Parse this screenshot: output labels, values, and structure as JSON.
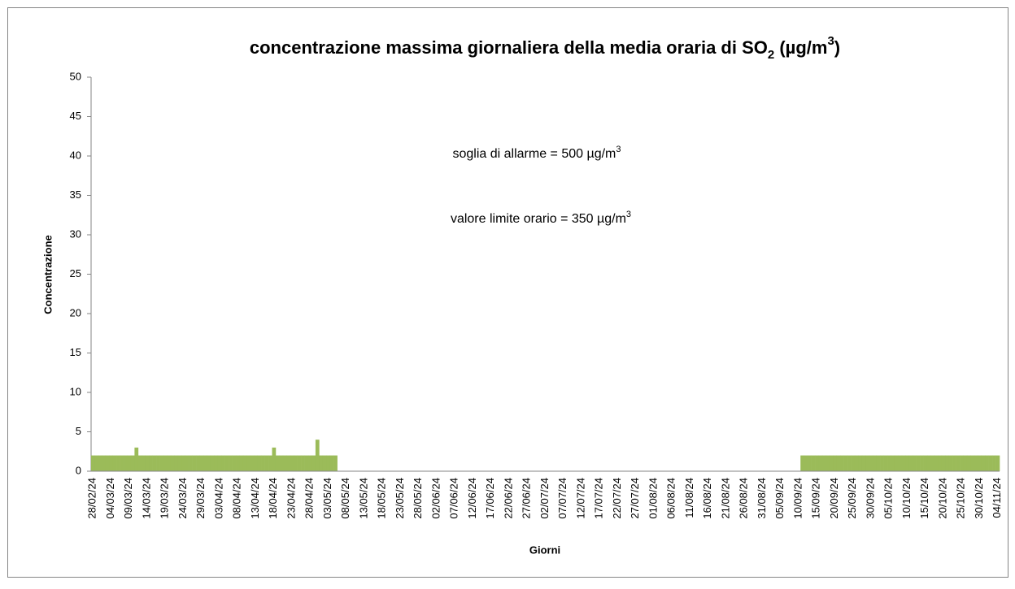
{
  "chart_data": {
    "type": "bar",
    "title": [
      "concentrazione massima  giornaliera della media oraria di SO",
      "2",
      " (µg/m",
      "3",
      ")"
    ],
    "annotations": [
      [
        "soglia di allarme = 500 µg/m",
        "3"
      ],
      [
        "valore limite orario = 350 µg/m",
        "3"
      ]
    ],
    "x_label": "Giorni",
    "y_label": "Concentrazione",
    "color": "#9bbb59",
    "ylim": [
      0,
      50
    ],
    "yticks": [
      0,
      5,
      10,
      15,
      20,
      25,
      30,
      35,
      40,
      45,
      50
    ],
    "grid": false,
    "categories": [
      "28/02/24",
      null,
      null,
      null,
      null,
      "04/03/24",
      null,
      null,
      null,
      null,
      "09/03/24",
      null,
      null,
      null,
      null,
      "14/03/24",
      null,
      null,
      null,
      null,
      "19/03/24",
      null,
      null,
      null,
      null,
      "24/03/24",
      null,
      null,
      null,
      null,
      "29/03/24",
      null,
      null,
      null,
      null,
      "03/04/24",
      null,
      null,
      null,
      null,
      "08/04/24",
      null,
      null,
      null,
      null,
      "13/04/24",
      null,
      null,
      null,
      null,
      "18/04/24",
      null,
      null,
      null,
      null,
      "23/04/24",
      null,
      null,
      null,
      null,
      "28/04/24",
      null,
      null,
      null,
      null,
      "03/05/24",
      null,
      null,
      null,
      null,
      "08/05/24",
      null,
      null,
      null,
      null,
      "13/05/24",
      null,
      null,
      null,
      null,
      "18/05/24",
      null,
      null,
      null,
      null,
      "23/05/24",
      null,
      null,
      null,
      null,
      "28/05/24",
      null,
      null,
      null,
      null,
      "02/06/24",
      null,
      null,
      null,
      null,
      "07/06/24",
      null,
      null,
      null,
      null,
      "12/06/24",
      null,
      null,
      null,
      null,
      "17/06/24",
      null,
      null,
      null,
      null,
      "22/06/24",
      null,
      null,
      null,
      null,
      "27/06/24",
      null,
      null,
      null,
      null,
      "02/07/24",
      null,
      null,
      null,
      null,
      "07/07/24",
      null,
      null,
      null,
      null,
      "12/07/24",
      null,
      null,
      null,
      null,
      "17/07/24",
      null,
      null,
      null,
      null,
      "22/07/24",
      null,
      null,
      null,
      null,
      "27/07/24",
      null,
      null,
      null,
      null,
      "01/08/24",
      null,
      null,
      null,
      null,
      "06/08/24",
      null,
      null,
      null,
      null,
      "11/08/24",
      null,
      null,
      null,
      null,
      "16/08/24",
      null,
      null,
      null,
      null,
      "21/08/24",
      null,
      null,
      null,
      null,
      "26/08/24",
      null,
      null,
      null,
      null,
      "31/08/24",
      null,
      null,
      null,
      null,
      "05/09/24",
      null,
      null,
      null,
      null,
      "10/09/24",
      null,
      null,
      null,
      null,
      "15/09/24",
      null,
      null,
      null,
      null,
      "20/09/24",
      null,
      null,
      null,
      null,
      "25/09/24",
      null,
      null,
      null,
      null,
      "30/09/24",
      null,
      null,
      null,
      null,
      "05/10/24",
      null,
      null,
      null,
      null,
      "10/10/24",
      null,
      null,
      null,
      null,
      "15/10/24",
      null,
      null,
      null,
      null,
      "20/10/24",
      null,
      null,
      null,
      null,
      "25/10/24",
      null,
      null,
      null,
      null,
      "30/10/24",
      null,
      null,
      null,
      null,
      "04/11/24"
    ],
    "values": [
      2,
      2,
      2,
      2,
      2,
      2,
      2,
      2,
      2,
      2,
      2,
      2,
      3,
      2,
      2,
      2,
      2,
      2,
      2,
      2,
      2,
      2,
      2,
      2,
      2,
      2,
      2,
      2,
      2,
      2,
      2,
      2,
      2,
      2,
      2,
      2,
      2,
      2,
      2,
      2,
      2,
      2,
      2,
      2,
      2,
      2,
      2,
      2,
      2,
      2,
      3,
      2,
      2,
      2,
      2,
      2,
      2,
      2,
      2,
      2,
      2,
      2,
      4,
      2,
      2,
      2,
      2,
      2,
      null,
      null,
      null,
      null,
      null,
      null,
      null,
      null,
      null,
      null,
      null,
      null,
      null,
      null,
      null,
      null,
      null,
      null,
      null,
      null,
      null,
      null,
      null,
      null,
      null,
      null,
      null,
      null,
      null,
      null,
      null,
      null,
      null,
      null,
      null,
      null,
      null,
      null,
      null,
      null,
      null,
      null,
      null,
      null,
      null,
      null,
      null,
      null,
      null,
      null,
      null,
      null,
      null,
      null,
      null,
      null,
      null,
      null,
      null,
      null,
      null,
      null,
      null,
      null,
      null,
      null,
      null,
      null,
      null,
      null,
      null,
      null,
      null,
      null,
      null,
      null,
      null,
      null,
      null,
      null,
      null,
      null,
      null,
      null,
      null,
      null,
      null,
      null,
      null,
      null,
      null,
      null,
      null,
      null,
      null,
      null,
      null,
      null,
      null,
      null,
      null,
      null,
      null,
      null,
      null,
      null,
      null,
      null,
      null,
      null,
      null,
      null,
      null,
      null,
      null,
      null,
      null,
      null,
      null,
      null,
      null,
      null,
      null,
      null,
      null,
      null,
      null,
      null,
      2,
      2,
      2,
      2,
      2,
      2,
      2,
      2,
      2,
      2,
      2,
      2,
      2,
      2,
      2,
      2,
      2,
      2,
      2,
      2,
      2,
      2,
      2,
      2,
      2,
      2,
      2,
      2,
      2,
      2,
      2,
      2,
      2,
      2,
      2,
      2,
      2,
      2,
      2,
      2,
      2,
      2,
      2,
      2,
      2,
      2,
      2,
      2,
      2,
      2,
      2,
      2,
      2,
      2,
      2
    ]
  }
}
